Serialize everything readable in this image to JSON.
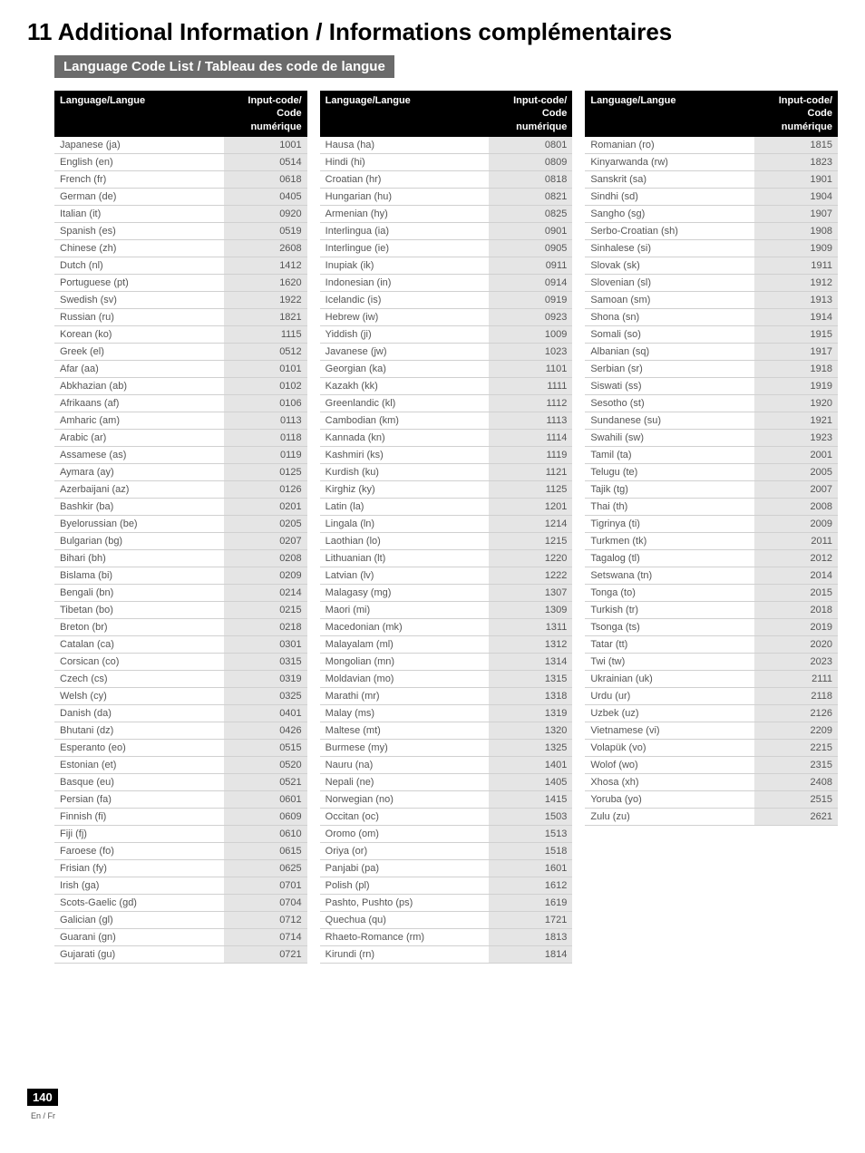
{
  "title": "11 Additional Information / Informations complémentaires",
  "subheading": "Language Code List / Tableau des code de langue",
  "header": {
    "col1": "Language/Langue",
    "col2line1": "Input-code/",
    "col2line2": "Code numérique"
  },
  "pageNumber": "140",
  "pageLang": "En / Fr",
  "col1": [
    {
      "l": "Japanese (ja)",
      "c": "1001"
    },
    {
      "l": "English (en)",
      "c": "0514"
    },
    {
      "l": "French (fr)",
      "c": "0618"
    },
    {
      "l": "German (de)",
      "c": "0405"
    },
    {
      "l": "Italian (it)",
      "c": "0920"
    },
    {
      "l": "Spanish (es)",
      "c": "0519"
    },
    {
      "l": "Chinese (zh)",
      "c": "2608"
    },
    {
      "l": "Dutch (nl)",
      "c": "1412"
    },
    {
      "l": "Portuguese (pt)",
      "c": "1620"
    },
    {
      "l": "Swedish (sv)",
      "c": "1922"
    },
    {
      "l": "Russian (ru)",
      "c": "1821"
    },
    {
      "l": "Korean (ko)",
      "c": "1115"
    },
    {
      "l": "Greek (el)",
      "c": "0512"
    },
    {
      "l": "Afar (aa)",
      "c": "0101"
    },
    {
      "l": "Abkhazian (ab)",
      "c": "0102"
    },
    {
      "l": "Afrikaans (af)",
      "c": "0106"
    },
    {
      "l": "Amharic (am)",
      "c": "0113"
    },
    {
      "l": "Arabic (ar)",
      "c": "0118"
    },
    {
      "l": "Assamese (as)",
      "c": "0119"
    },
    {
      "l": "Aymara (ay)",
      "c": "0125"
    },
    {
      "l": "Azerbaijani (az)",
      "c": "0126"
    },
    {
      "l": "Bashkir (ba)",
      "c": "0201"
    },
    {
      "l": "Byelorussian (be)",
      "c": "0205"
    },
    {
      "l": "Bulgarian (bg)",
      "c": "0207"
    },
    {
      "l": "Bihari (bh)",
      "c": "0208"
    },
    {
      "l": "Bislama (bi)",
      "c": "0209"
    },
    {
      "l": "Bengali (bn)",
      "c": "0214"
    },
    {
      "l": "Tibetan (bo)",
      "c": "0215"
    },
    {
      "l": "Breton (br)",
      "c": "0218"
    },
    {
      "l": "Catalan (ca)",
      "c": "0301"
    },
    {
      "l": "Corsican (co)",
      "c": "0315"
    },
    {
      "l": "Czech (cs)",
      "c": "0319"
    },
    {
      "l": "Welsh (cy)",
      "c": "0325"
    },
    {
      "l": "Danish (da)",
      "c": "0401"
    },
    {
      "l": "Bhutani (dz)",
      "c": "0426"
    },
    {
      "l": "Esperanto (eo)",
      "c": "0515"
    },
    {
      "l": "Estonian (et)",
      "c": "0520"
    },
    {
      "l": "Basque (eu)",
      "c": "0521"
    },
    {
      "l": "Persian (fa)",
      "c": "0601"
    },
    {
      "l": "Finnish (fi)",
      "c": "0609"
    },
    {
      "l": "Fiji (fj)",
      "c": "0610"
    },
    {
      "l": "Faroese (fo)",
      "c": "0615"
    },
    {
      "l": "Frisian (fy)",
      "c": "0625"
    },
    {
      "l": "Irish (ga)",
      "c": "0701"
    },
    {
      "l": "Scots-Gaelic (gd)",
      "c": "0704"
    },
    {
      "l": "Galician (gl)",
      "c": "0712"
    },
    {
      "l": "Guarani (gn)",
      "c": "0714"
    },
    {
      "l": "Gujarati (gu)",
      "c": "0721"
    }
  ],
  "col2": [
    {
      "l": "Hausa (ha)",
      "c": "0801"
    },
    {
      "l": "Hindi (hi)",
      "c": "0809"
    },
    {
      "l": "Croatian (hr)",
      "c": "0818"
    },
    {
      "l": "Hungarian (hu)",
      "c": "0821"
    },
    {
      "l": "Armenian (hy)",
      "c": "0825"
    },
    {
      "l": "Interlingua (ia)",
      "c": "0901"
    },
    {
      "l": "Interlingue (ie)",
      "c": "0905"
    },
    {
      "l": "Inupiak (ik)",
      "c": "0911"
    },
    {
      "l": "Indonesian (in)",
      "c": "0914"
    },
    {
      "l": "Icelandic (is)",
      "c": "0919"
    },
    {
      "l": "Hebrew (iw)",
      "c": "0923"
    },
    {
      "l": "Yiddish (ji)",
      "c": "1009"
    },
    {
      "l": "Javanese (jw)",
      "c": "1023"
    },
    {
      "l": "Georgian (ka)",
      "c": "1101"
    },
    {
      "l": "Kazakh (kk)",
      "c": "1111"
    },
    {
      "l": "Greenlandic (kl)",
      "c": "1112"
    },
    {
      "l": "Cambodian (km)",
      "c": "1113"
    },
    {
      "l": "Kannada (kn)",
      "c": "1114"
    },
    {
      "l": "Kashmiri (ks)",
      "c": "1119"
    },
    {
      "l": "Kurdish (ku)",
      "c": "1121"
    },
    {
      "l": "Kirghiz (ky)",
      "c": "1125"
    },
    {
      "l": "Latin (la)",
      "c": "1201"
    },
    {
      "l": "Lingala (ln)",
      "c": "1214"
    },
    {
      "l": "Laothian (lo)",
      "c": "1215"
    },
    {
      "l": "Lithuanian (lt)",
      "c": "1220"
    },
    {
      "l": "Latvian (lv)",
      "c": "1222"
    },
    {
      "l": "Malagasy (mg)",
      "c": "1307"
    },
    {
      "l": "Maori (mi)",
      "c": "1309"
    },
    {
      "l": "Macedonian (mk)",
      "c": "1311"
    },
    {
      "l": "Malayalam (ml)",
      "c": "1312"
    },
    {
      "l": "Mongolian (mn)",
      "c": "1314"
    },
    {
      "l": "Moldavian (mo)",
      "c": "1315"
    },
    {
      "l": "Marathi (mr)",
      "c": "1318"
    },
    {
      "l": "Malay (ms)",
      "c": "1319"
    },
    {
      "l": "Maltese (mt)",
      "c": "1320"
    },
    {
      "l": "Burmese (my)",
      "c": "1325"
    },
    {
      "l": "Nauru (na)",
      "c": "1401"
    },
    {
      "l": "Nepali (ne)",
      "c": "1405"
    },
    {
      "l": "Norwegian (no)",
      "c": "1415"
    },
    {
      "l": "Occitan (oc)",
      "c": "1503"
    },
    {
      "l": "Oromo (om)",
      "c": "1513"
    },
    {
      "l": "Oriya (or)",
      "c": "1518"
    },
    {
      "l": "Panjabi (pa)",
      "c": "1601"
    },
    {
      "l": "Polish (pl)",
      "c": "1612"
    },
    {
      "l": "Pashto, Pushto (ps)",
      "c": "1619"
    },
    {
      "l": "Quechua (qu)",
      "c": "1721"
    },
    {
      "l": "Rhaeto-Romance (rm)",
      "c": "1813"
    },
    {
      "l": "Kirundi (rn)",
      "c": "1814"
    }
  ],
  "col3": [
    {
      "l": "Romanian (ro)",
      "c": "1815"
    },
    {
      "l": "Kinyarwanda (rw)",
      "c": "1823"
    },
    {
      "l": "Sanskrit (sa)",
      "c": "1901"
    },
    {
      "l": "Sindhi (sd)",
      "c": "1904"
    },
    {
      "l": "Sangho (sg)",
      "c": "1907"
    },
    {
      "l": "Serbo-Croatian (sh)",
      "c": "1908"
    },
    {
      "l": "Sinhalese (si)",
      "c": "1909"
    },
    {
      "l": "Slovak (sk)",
      "c": "1911"
    },
    {
      "l": "Slovenian (sl)",
      "c": "1912"
    },
    {
      "l": "Samoan (sm)",
      "c": "1913"
    },
    {
      "l": "Shona (sn)",
      "c": "1914"
    },
    {
      "l": "Somali (so)",
      "c": "1915"
    },
    {
      "l": "Albanian (sq)",
      "c": "1917"
    },
    {
      "l": "Serbian (sr)",
      "c": "1918"
    },
    {
      "l": "Siswati (ss)",
      "c": "1919"
    },
    {
      "l": "Sesotho (st)",
      "c": "1920"
    },
    {
      "l": "Sundanese (su)",
      "c": "1921"
    },
    {
      "l": "Swahili (sw)",
      "c": "1923"
    },
    {
      "l": "Tamil (ta)",
      "c": "2001"
    },
    {
      "l": "Telugu (te)",
      "c": "2005"
    },
    {
      "l": "Tajik (tg)",
      "c": "2007"
    },
    {
      "l": "Thai (th)",
      "c": "2008"
    },
    {
      "l": "Tigrinya (ti)",
      "c": "2009"
    },
    {
      "l": "Turkmen (tk)",
      "c": "2011"
    },
    {
      "l": "Tagalog (tl)",
      "c": "2012"
    },
    {
      "l": "Setswana (tn)",
      "c": "2014"
    },
    {
      "l": "Tonga (to)",
      "c": "2015"
    },
    {
      "l": "Turkish (tr)",
      "c": "2018"
    },
    {
      "l": "Tsonga (ts)",
      "c": "2019"
    },
    {
      "l": "Tatar (tt)",
      "c": "2020"
    },
    {
      "l": "Twi (tw)",
      "c": "2023"
    },
    {
      "l": "Ukrainian (uk)",
      "c": "2111"
    },
    {
      "l": "Urdu (ur)",
      "c": "2118"
    },
    {
      "l": "Uzbek (uz)",
      "c": "2126"
    },
    {
      "l": "Vietnamese (vi)",
      "c": "2209"
    },
    {
      "l": "Volapük (vo)",
      "c": "2215"
    },
    {
      "l": "Wolof (wo)",
      "c": "2315"
    },
    {
      "l": "Xhosa (xh)",
      "c": "2408"
    },
    {
      "l": "Yoruba (yo)",
      "c": "2515"
    },
    {
      "l": "Zulu (zu)",
      "c": "2621"
    }
  ]
}
